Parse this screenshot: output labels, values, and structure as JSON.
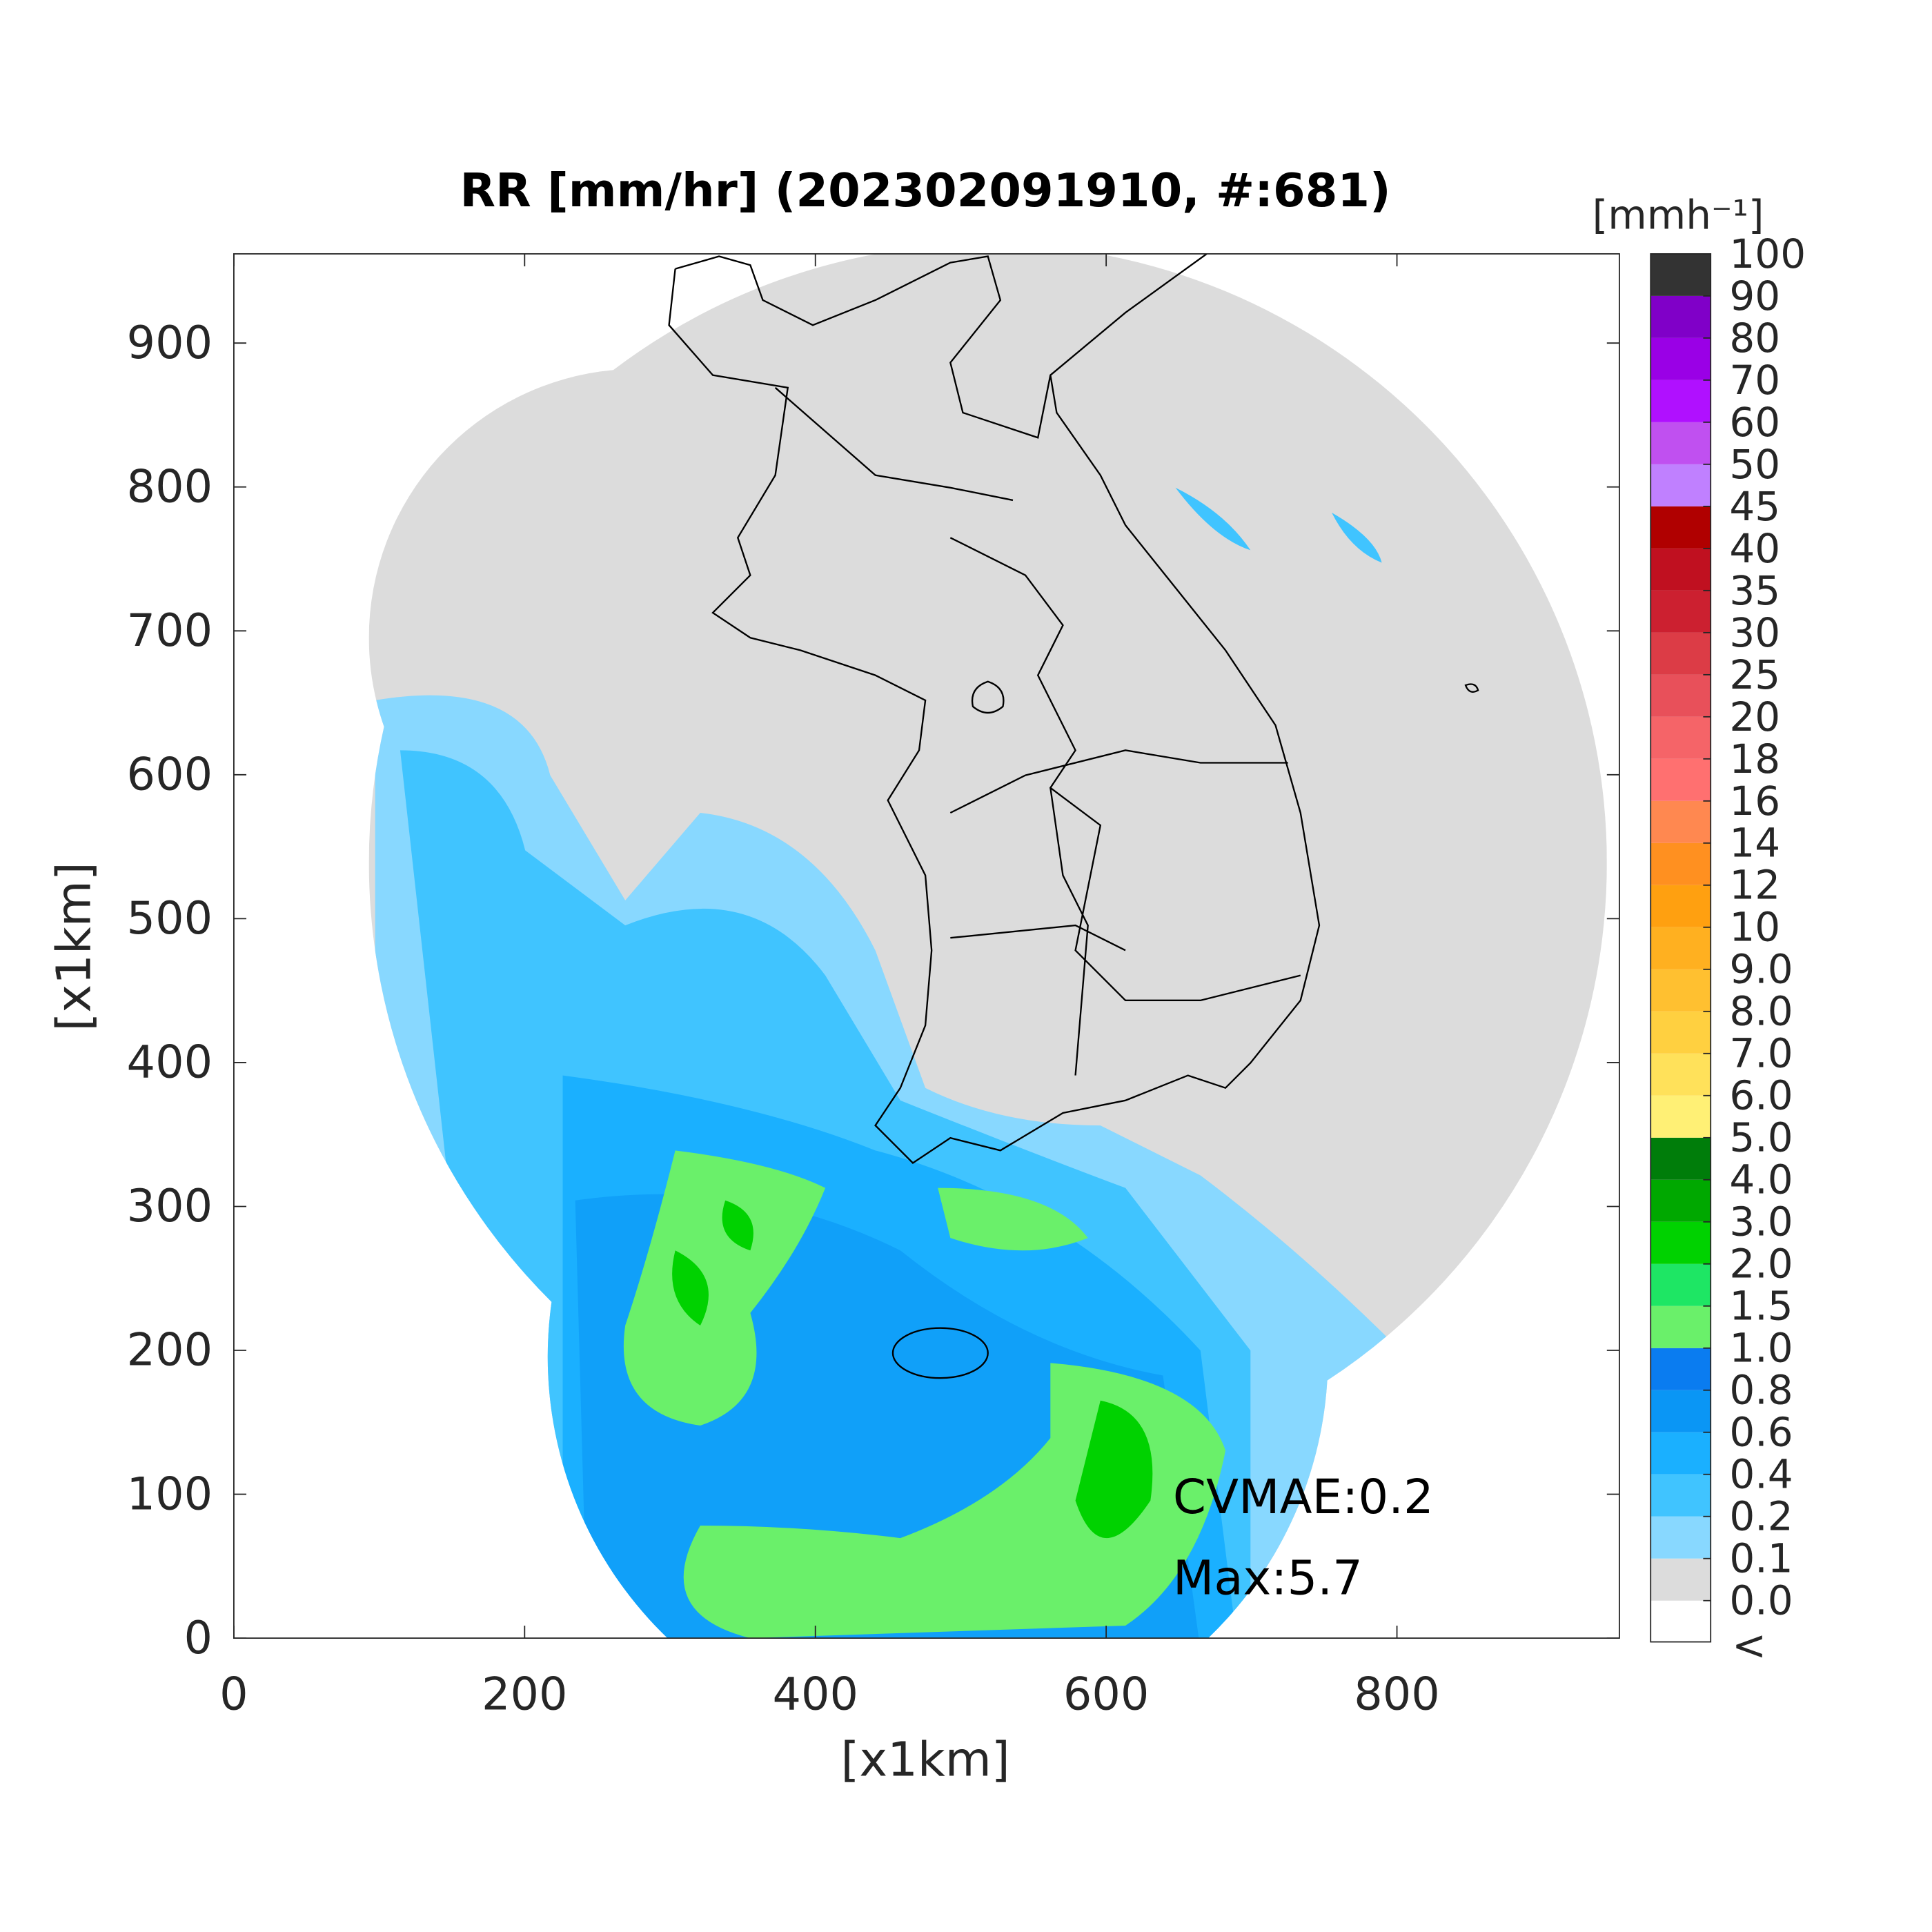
{
  "chart_data": {
    "type": "heatmap",
    "title": "RR [mm/hr] (202302091910, #:681)",
    "xlabel": "[x1km]",
    "ylabel": "[x1km]",
    "xlim": [
      0,
      953
    ],
    "ylim": [
      0,
      962
    ],
    "xticks": [
      0,
      200,
      400,
      600,
      800
    ],
    "yticks": [
      0,
      100,
      200,
      300,
      400,
      500,
      600,
      700,
      800,
      900
    ],
    "annotations": [
      "CVMAE:0.2",
      "Max:5.7"
    ],
    "colorbar": {
      "label": "[mmh⁻¹]",
      "under_label": "<",
      "under_color": "#ffffff",
      "ticks": [
        {
          "value": 0,
          "label": "0.0"
        },
        0.1,
        0.2,
        0.4,
        0.6,
        0.8,
        {
          "value": 1,
          "label": "1.0"
        },
        1.5,
        {
          "value": 2,
          "label": "2.0"
        },
        {
          "value": 3,
          "label": "3.0"
        },
        {
          "value": 4,
          "label": "4.0"
        },
        {
          "value": 5,
          "label": "5.0"
        },
        {
          "value": 6,
          "label": "6.0"
        },
        {
          "value": 7,
          "label": "7.0"
        },
        {
          "value": 8,
          "label": "8.0"
        },
        {
          "value": 9,
          "label": "9.0"
        },
        10,
        12,
        14,
        16,
        18,
        20,
        25,
        30,
        35,
        40,
        45,
        50,
        60,
        70,
        80,
        90,
        100
      ],
      "colors": [
        "#dcdcdc",
        "#88d8ff",
        "#40c4ff",
        "#1ab0ff",
        "#0a96f5",
        "#0a7cf0",
        "#6af06a",
        "#1ee664",
        "#00d200",
        "#00a800",
        "#007d0a",
        "#fff075",
        "#ffe15a",
        "#ffd040",
        "#ffc030",
        "#ffb020",
        "#ffa010",
        "#ff9020",
        "#ff8850",
        "#ff7070",
        "#f56468",
        "#e8505a",
        "#dc3c46",
        "#cc2030",
        "#c01020",
        "#b00000",
        "#c080ff",
        "#c050f0",
        "#b010ff",
        "#9a00e6",
        "#8000c8",
        "#333333"
      ]
    }
  }
}
